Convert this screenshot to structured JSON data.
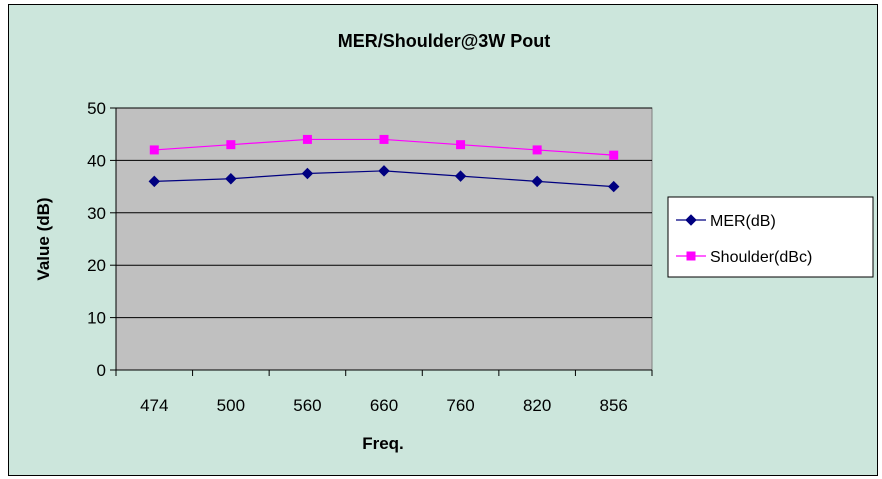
{
  "chart_data": {
    "type": "line",
    "title": "MER/Shoulder@3W Pout",
    "xlabel": "Freq.",
    "ylabel": "Value (dB)",
    "categories": [
      "474",
      "500",
      "560",
      "660",
      "760",
      "820",
      "856"
    ],
    "ylim": [
      0,
      50
    ],
    "yticks": [
      0,
      10,
      20,
      30,
      40,
      50
    ],
    "grid": true,
    "legend": "right",
    "series": [
      {
        "name": "MER(dB)",
        "color": "#000080",
        "marker": "diamond",
        "values": [
          36,
          36.5,
          37.5,
          38,
          37,
          36,
          35
        ]
      },
      {
        "name": "Shoulder(dBc)",
        "color": "#ff00ff",
        "marker": "square",
        "values": [
          42,
          43,
          44,
          44,
          43,
          42,
          41
        ]
      }
    ]
  }
}
